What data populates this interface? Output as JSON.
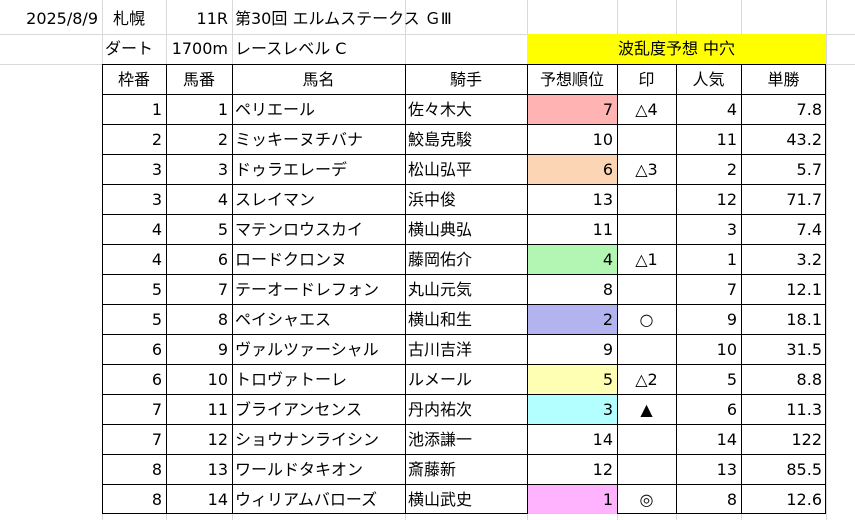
{
  "info": {
    "date": "2025/8/9",
    "venue": "札幌",
    "race_no": "11R",
    "race_name": "第30回 エルムステークス ＧⅢ",
    "surface": "ダート",
    "distance": "1700m",
    "level": "レースレベル C",
    "forecast": "波乱度予想 中穴"
  },
  "headers": [
    "枠番",
    "馬番",
    "馬名",
    "騎手",
    "予想順位",
    "印",
    "人気",
    "単勝"
  ],
  "rows": [
    {
      "waku": "1",
      "uma": "1",
      "name": "ペリエール",
      "jockey": "佐々木大",
      "rank": "7",
      "mark": "△4",
      "ninki": "4",
      "odds": "7.8",
      "color": "#ffb3b3"
    },
    {
      "waku": "2",
      "uma": "2",
      "name": "ミッキーヌチバナ",
      "jockey": "鮫島克駿",
      "rank": "10",
      "mark": "",
      "ninki": "11",
      "odds": "43.2",
      "color": ""
    },
    {
      "waku": "3",
      "uma": "3",
      "name": "ドゥラエレーデ",
      "jockey": "松山弘平",
      "rank": "6",
      "mark": "△3",
      "ninki": "2",
      "odds": "5.7",
      "color": "#fcd5b4"
    },
    {
      "waku": "3",
      "uma": "4",
      "name": "スレイマン",
      "jockey": "浜中俊",
      "rank": "13",
      "mark": "",
      "ninki": "12",
      "odds": "71.7",
      "color": ""
    },
    {
      "waku": "4",
      "uma": "5",
      "name": "マテンロウスカイ",
      "jockey": "横山典弘",
      "rank": "11",
      "mark": "",
      "ninki": "3",
      "odds": "7.4",
      "color": ""
    },
    {
      "waku": "4",
      "uma": "6",
      "name": "ロードクロンヌ",
      "jockey": "藤岡佑介",
      "rank": "4",
      "mark": "△1",
      "ninki": "1",
      "odds": "3.2",
      "color": "#b3f5b3"
    },
    {
      "waku": "5",
      "uma": "7",
      "name": "テーオードレフォン",
      "jockey": "丸山元気",
      "rank": "8",
      "mark": "",
      "ninki": "7",
      "odds": "12.1",
      "color": ""
    },
    {
      "waku": "5",
      "uma": "8",
      "name": "ペイシャエス",
      "jockey": "横山和生",
      "rank": "2",
      "mark": "○",
      "ninki": "9",
      "odds": "18.1",
      "color": "#b3b3f0"
    },
    {
      "waku": "6",
      "uma": "9",
      "name": "ヴァルツァーシャル",
      "jockey": "古川吉洋",
      "rank": "9",
      "mark": "",
      "ninki": "10",
      "odds": "31.5",
      "color": ""
    },
    {
      "waku": "6",
      "uma": "10",
      "name": "トロヴァトーレ",
      "jockey": "ルメール",
      "rank": "5",
      "mark": "△2",
      "ninki": "5",
      "odds": "8.8",
      "color": "#ffffb3"
    },
    {
      "waku": "7",
      "uma": "11",
      "name": "ブライアンセンス",
      "jockey": "丹内祐次",
      "rank": "3",
      "mark": "▲",
      "ninki": "6",
      "odds": "11.3",
      "color": "#b3ffff"
    },
    {
      "waku": "7",
      "uma": "12",
      "name": "ショウナンライシン",
      "jockey": "池添謙一",
      "rank": "14",
      "mark": "",
      "ninki": "14",
      "odds": "122",
      "color": ""
    },
    {
      "waku": "8",
      "uma": "13",
      "name": "ワールドタキオン",
      "jockey": "斎藤新",
      "rank": "12",
      "mark": "",
      "ninki": "13",
      "odds": "85.5",
      "color": ""
    },
    {
      "waku": "8",
      "uma": "14",
      "name": "ウィリアムバローズ",
      "jockey": "横山武史",
      "rank": "1",
      "mark": "◎",
      "ninki": "8",
      "odds": "12.6",
      "color": "#ffb3ff"
    }
  ]
}
